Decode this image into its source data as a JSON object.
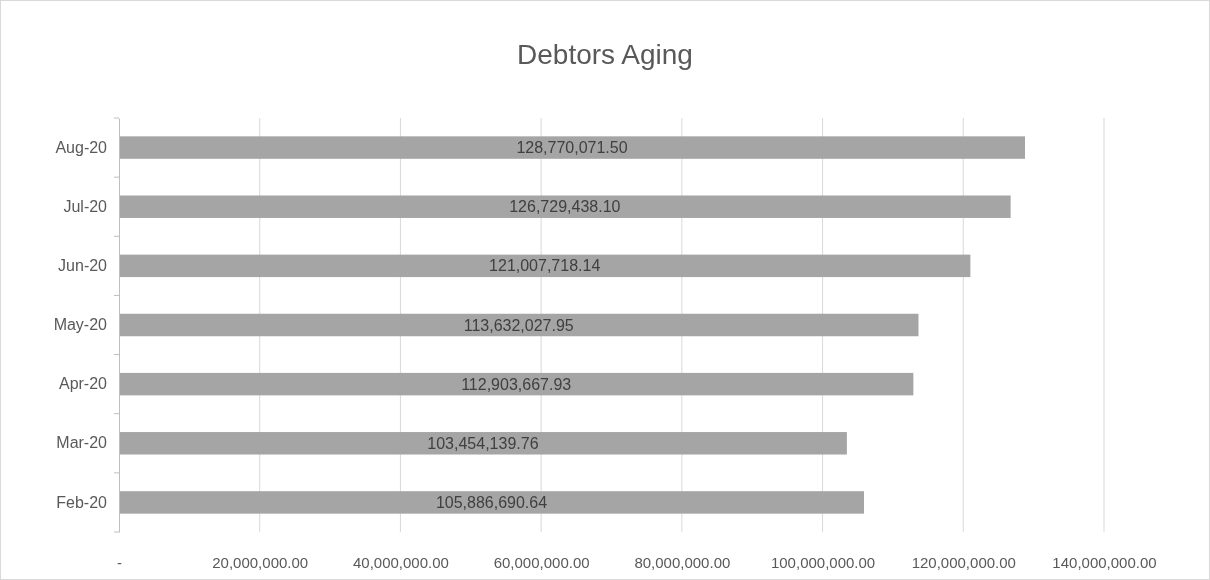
{
  "chart_data": {
    "type": "bar",
    "orientation": "horizontal",
    "title": "Debtors Aging",
    "categories": [
      "Aug-20",
      "Jul-20",
      "Jun-20",
      "May-20",
      "Apr-20",
      "Mar-20",
      "Feb-20"
    ],
    "values": [
      128770071.5,
      126729438.1,
      121007718.14,
      113632027.95,
      112903667.93,
      103454139.76,
      105886690.64
    ],
    "value_labels": [
      "128,770,071.50",
      "126,729,438.10",
      "121,007,718.14",
      "113,632,027.95",
      "112,903,667.93",
      "103,454,139.76",
      "105,886,690.64"
    ],
    "color": "#a5a5a5",
    "xlim": [
      0,
      140000000
    ],
    "xticks": [
      {
        "value": 0,
        "label": "-"
      },
      {
        "value": 20000000,
        "label": "20,000,000.00"
      },
      {
        "value": 40000000,
        "label": "40,000,000.00"
      },
      {
        "value": 60000000,
        "label": "60,000,000.00"
      },
      {
        "value": 80000000,
        "label": "80,000,000.00"
      },
      {
        "value": 100000000,
        "label": "100,000,000.00"
      },
      {
        "value": 120000000,
        "label": "120,000,000.00"
      },
      {
        "value": 140000000,
        "label": "140,000,000.00"
      }
    ],
    "grid": "x"
  }
}
